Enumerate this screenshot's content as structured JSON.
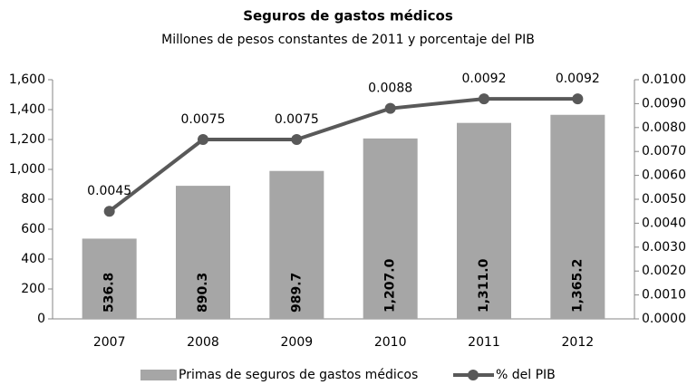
{
  "chart_data": {
    "type": "bar+line",
    "title": "Seguros de gastos médicos",
    "subtitle": "Millones de pesos constantes de 2011 y porcentaje del PIB",
    "categories": [
      "2007",
      "2008",
      "2009",
      "2010",
      "2011",
      "2012"
    ],
    "series": [
      {
        "name": "Primas de seguros de gastos  médicos",
        "type": "bar",
        "color": "#a6a6a6",
        "values": [
          536.8,
          890.3,
          989.7,
          1207.0,
          1311.0,
          1365.2
        ],
        "value_labels": [
          "536.8",
          "890.3",
          "989.7",
          "1,207.0",
          "1,311.0",
          "1,365.2"
        ]
      },
      {
        "name": "% del PIB",
        "type": "line",
        "axis": "y2",
        "color": "#595959",
        "values": [
          0.0045,
          0.0075,
          0.0075,
          0.0088,
          0.0092,
          0.0092
        ]
      }
    ],
    "ylim": [
      0,
      1600
    ],
    "yticks": [
      0,
      200,
      400,
      600,
      800,
      {
        "value": 1000,
        "label": "1,000"
      },
      {
        "value": 1200,
        "label": "1,200"
      },
      {
        "value": 1400,
        "label": "1,400"
      },
      {
        "value": 1600,
        "label": "1,600"
      }
    ],
    "y2lim": [
      0,
      0.01
    ],
    "y2ticks": [
      {
        "value": 0,
        "label": "0.0000"
      },
      {
        "value": 0.001,
        "label": "0.0010"
      },
      {
        "value": 0.002,
        "label": "0.0020"
      },
      {
        "value": 0.003,
        "label": "0.0030"
      },
      {
        "value": 0.004,
        "label": "0.0040"
      },
      {
        "value": 0.005,
        "label": "0.0050"
      },
      {
        "value": 0.006,
        "label": "0.0060"
      },
      {
        "value": 0.007,
        "label": "0.0070"
      },
      {
        "value": 0.008,
        "label": "0.0080"
      },
      {
        "value": 0.009,
        "label": "0.0090"
      },
      {
        "value": 0.01,
        "label": "0.0100"
      }
    ],
    "grid": false,
    "legend": "bottom"
  }
}
